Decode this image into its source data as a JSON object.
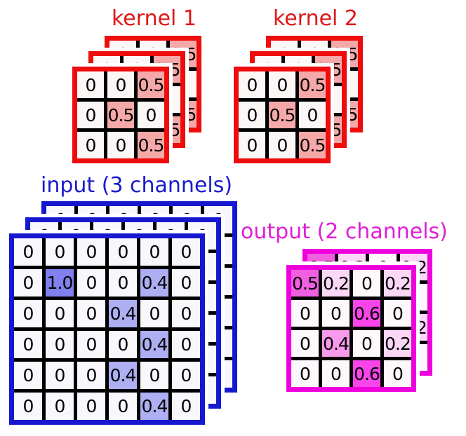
{
  "diagram": {
    "description": "2D convolution with multiple channels: two kernels applied to a 3-channel input producing a 2-channel output"
  },
  "stacks": [
    {
      "id": "kernel1",
      "title": "kernel 1",
      "layer_count": 3,
      "rows": 3,
      "cols": 3,
      "cells": [
        [
          "0",
          "0",
          "0.5"
        ],
        [
          "0",
          "0.5",
          "0"
        ],
        [
          "0",
          "0",
          "0.5"
        ]
      ],
      "value_colors": {
        "0.5": "#f5a8a8"
      },
      "border_color": "#ee0c0c",
      "title_color": "#e01616",
      "cell_bg": "#fbf7f6"
    },
    {
      "id": "kernel2",
      "title": "kernel 2",
      "layer_count": 3,
      "rows": 3,
      "cols": 3,
      "cells": [
        [
          "0",
          "0",
          "0.5"
        ],
        [
          "0",
          "0.5",
          "0"
        ],
        [
          "0",
          "0",
          "0.5"
        ]
      ],
      "value_colors": {
        "0.5": "#f5a8a8"
      },
      "border_color": "#ee0c0c",
      "title_color": "#e01616",
      "cell_bg": "#fbf7f6"
    },
    {
      "id": "input",
      "title": "input (3 channels)",
      "layer_count": 3,
      "rows": 6,
      "cols": 6,
      "cells": [
        [
          "0",
          "0",
          "0",
          "0",
          "0",
          "0"
        ],
        [
          "0",
          "1.0",
          "0",
          "0",
          "0.4",
          "0"
        ],
        [
          "0",
          "0",
          "0",
          "0.4",
          "0",
          "0"
        ],
        [
          "0",
          "0",
          "0",
          "0",
          "0.4",
          "0"
        ],
        [
          "0",
          "0",
          "0",
          "0.4",
          "0",
          "0"
        ],
        [
          "0",
          "0",
          "0",
          "0",
          "0.4",
          "0"
        ]
      ],
      "value_colors": {
        "1.0": "#8080ee",
        "0.4": "#aeaef3"
      },
      "border_color": "#1717cf",
      "title_color": "#1a1acc",
      "cell_bg": "#f8f8fc"
    },
    {
      "id": "output",
      "title": "output (2 channels)",
      "layer_count": 2,
      "rows": 4,
      "cols": 4,
      "cells": [
        [
          "0.5",
          "0.2",
          "0",
          "0.2"
        ],
        [
          "0",
          "0",
          "0.6",
          "0"
        ],
        [
          "0",
          "0.4",
          "0",
          "0.2"
        ],
        [
          "0",
          "0",
          "0.6",
          "0"
        ]
      ],
      "value_colors": {
        "0.5": "#ef5fe0",
        "0.6": "#f944ea",
        "0.4": "#f79aec",
        "0.2": "#fbd7f6"
      },
      "border_color": "#ee00dd",
      "title_color": "#e01ed6",
      "cell_bg": "#fdf8fc"
    }
  ]
}
